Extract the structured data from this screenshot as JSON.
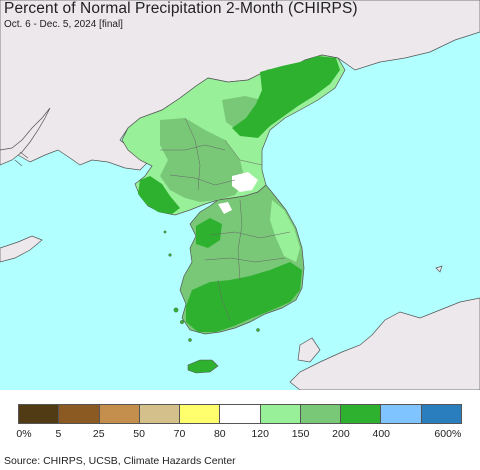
{
  "title": "Percent of Normal Precipitation 2-Month (CHIRPS)",
  "subtitle": "Oct. 6 - Dec. 5, 2024 [final]",
  "source": "Source: CHIRPS, UCSB, Climate Hazards Center",
  "colors": {
    "sea": "#b2ffff",
    "foreign_land": "#ece8ec",
    "border": "#555555",
    "light_green": "#98f098",
    "mid_green": "#78c878",
    "dark_green": "#2eb12e",
    "white": "#ffffff"
  },
  "legend": {
    "colors": [
      "#513b14",
      "#8b5a23",
      "#c48f4c",
      "#d4c08a",
      "#ffff6e",
      "#ffffff",
      "#98f098",
      "#78c878",
      "#2eb12e",
      "#7fc4ff",
      "#2b7ebd"
    ],
    "labels": [
      "0%",
      "5",
      "25",
      "50",
      "70",
      "80",
      "120",
      "150",
      "200",
      "400",
      "600%"
    ]
  }
}
